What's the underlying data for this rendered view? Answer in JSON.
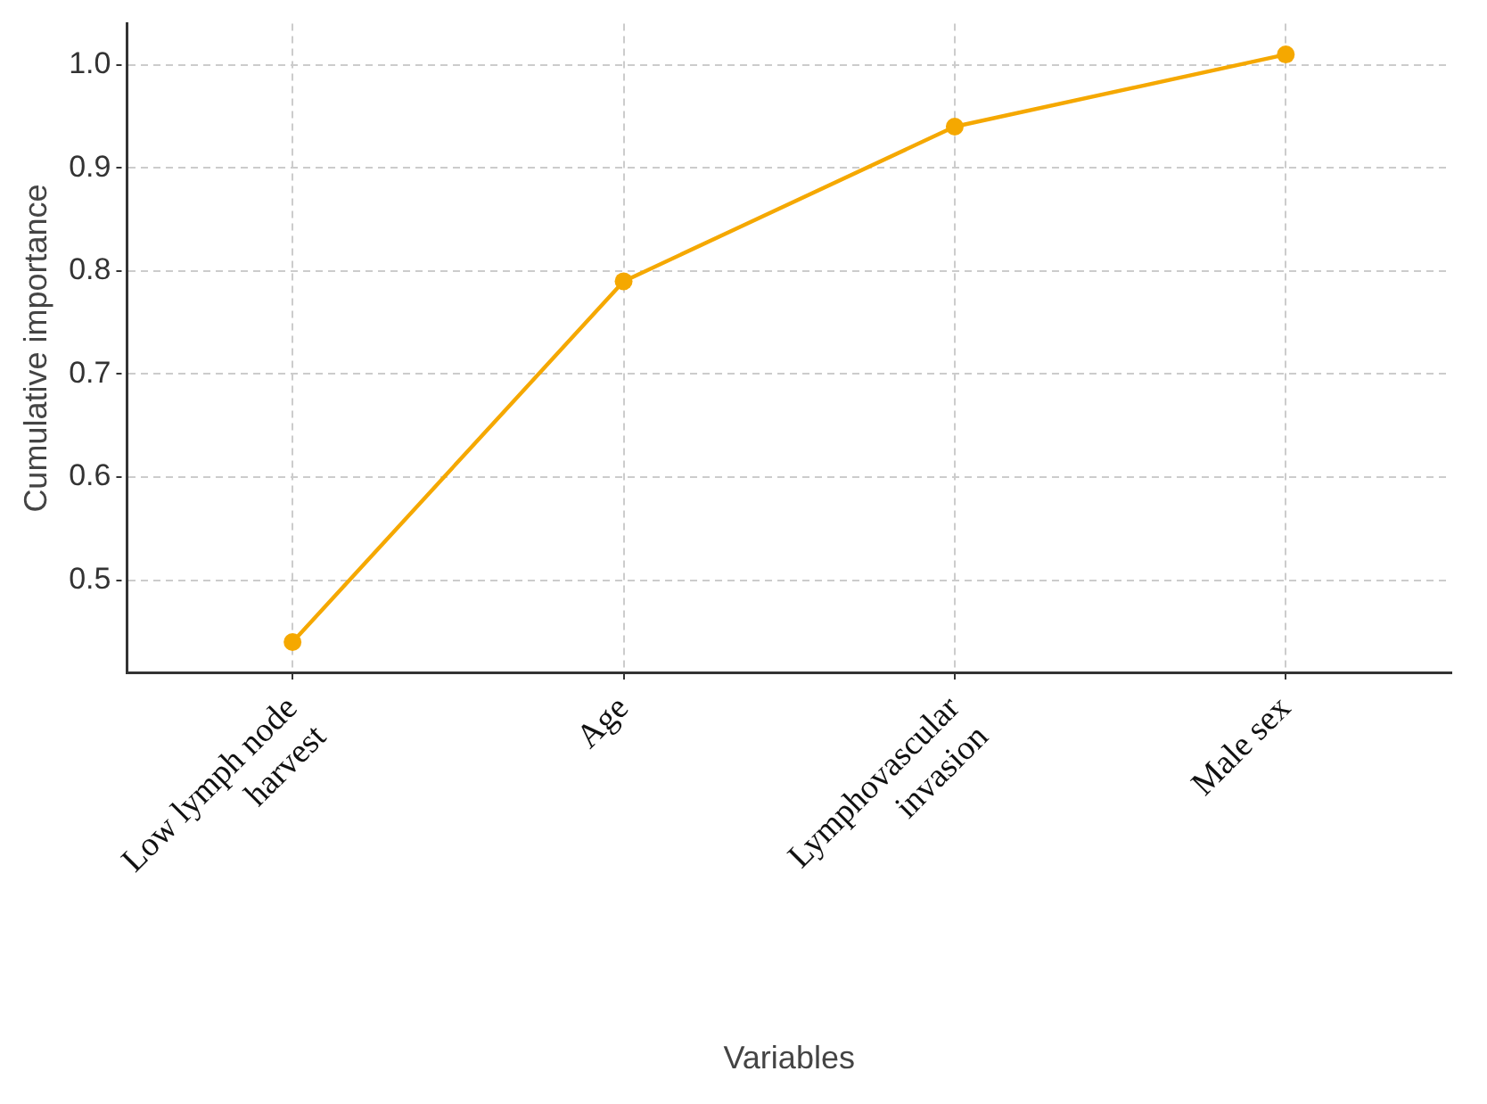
{
  "chart_data": {
    "type": "line",
    "xlabel": "Variables",
    "ylabel": "Cumulative importance",
    "categories": [
      "Low lymph node\nharvest",
      "Age",
      "Lymphovascular\ninvasion",
      "Male sex"
    ],
    "series": [
      {
        "color": "#f5a800",
        "values": [
          0.44,
          0.79,
          0.94,
          1.01
        ]
      }
    ],
    "ylim": [
      0.41,
      1.04
    ],
    "yticks": [
      0.5,
      0.6,
      0.7,
      0.8,
      0.9,
      {
        "value": 1,
        "label": "1.0"
      }
    ],
    "grid": true,
    "marker": "circle",
    "line_style": "solid",
    "legend": false
  }
}
